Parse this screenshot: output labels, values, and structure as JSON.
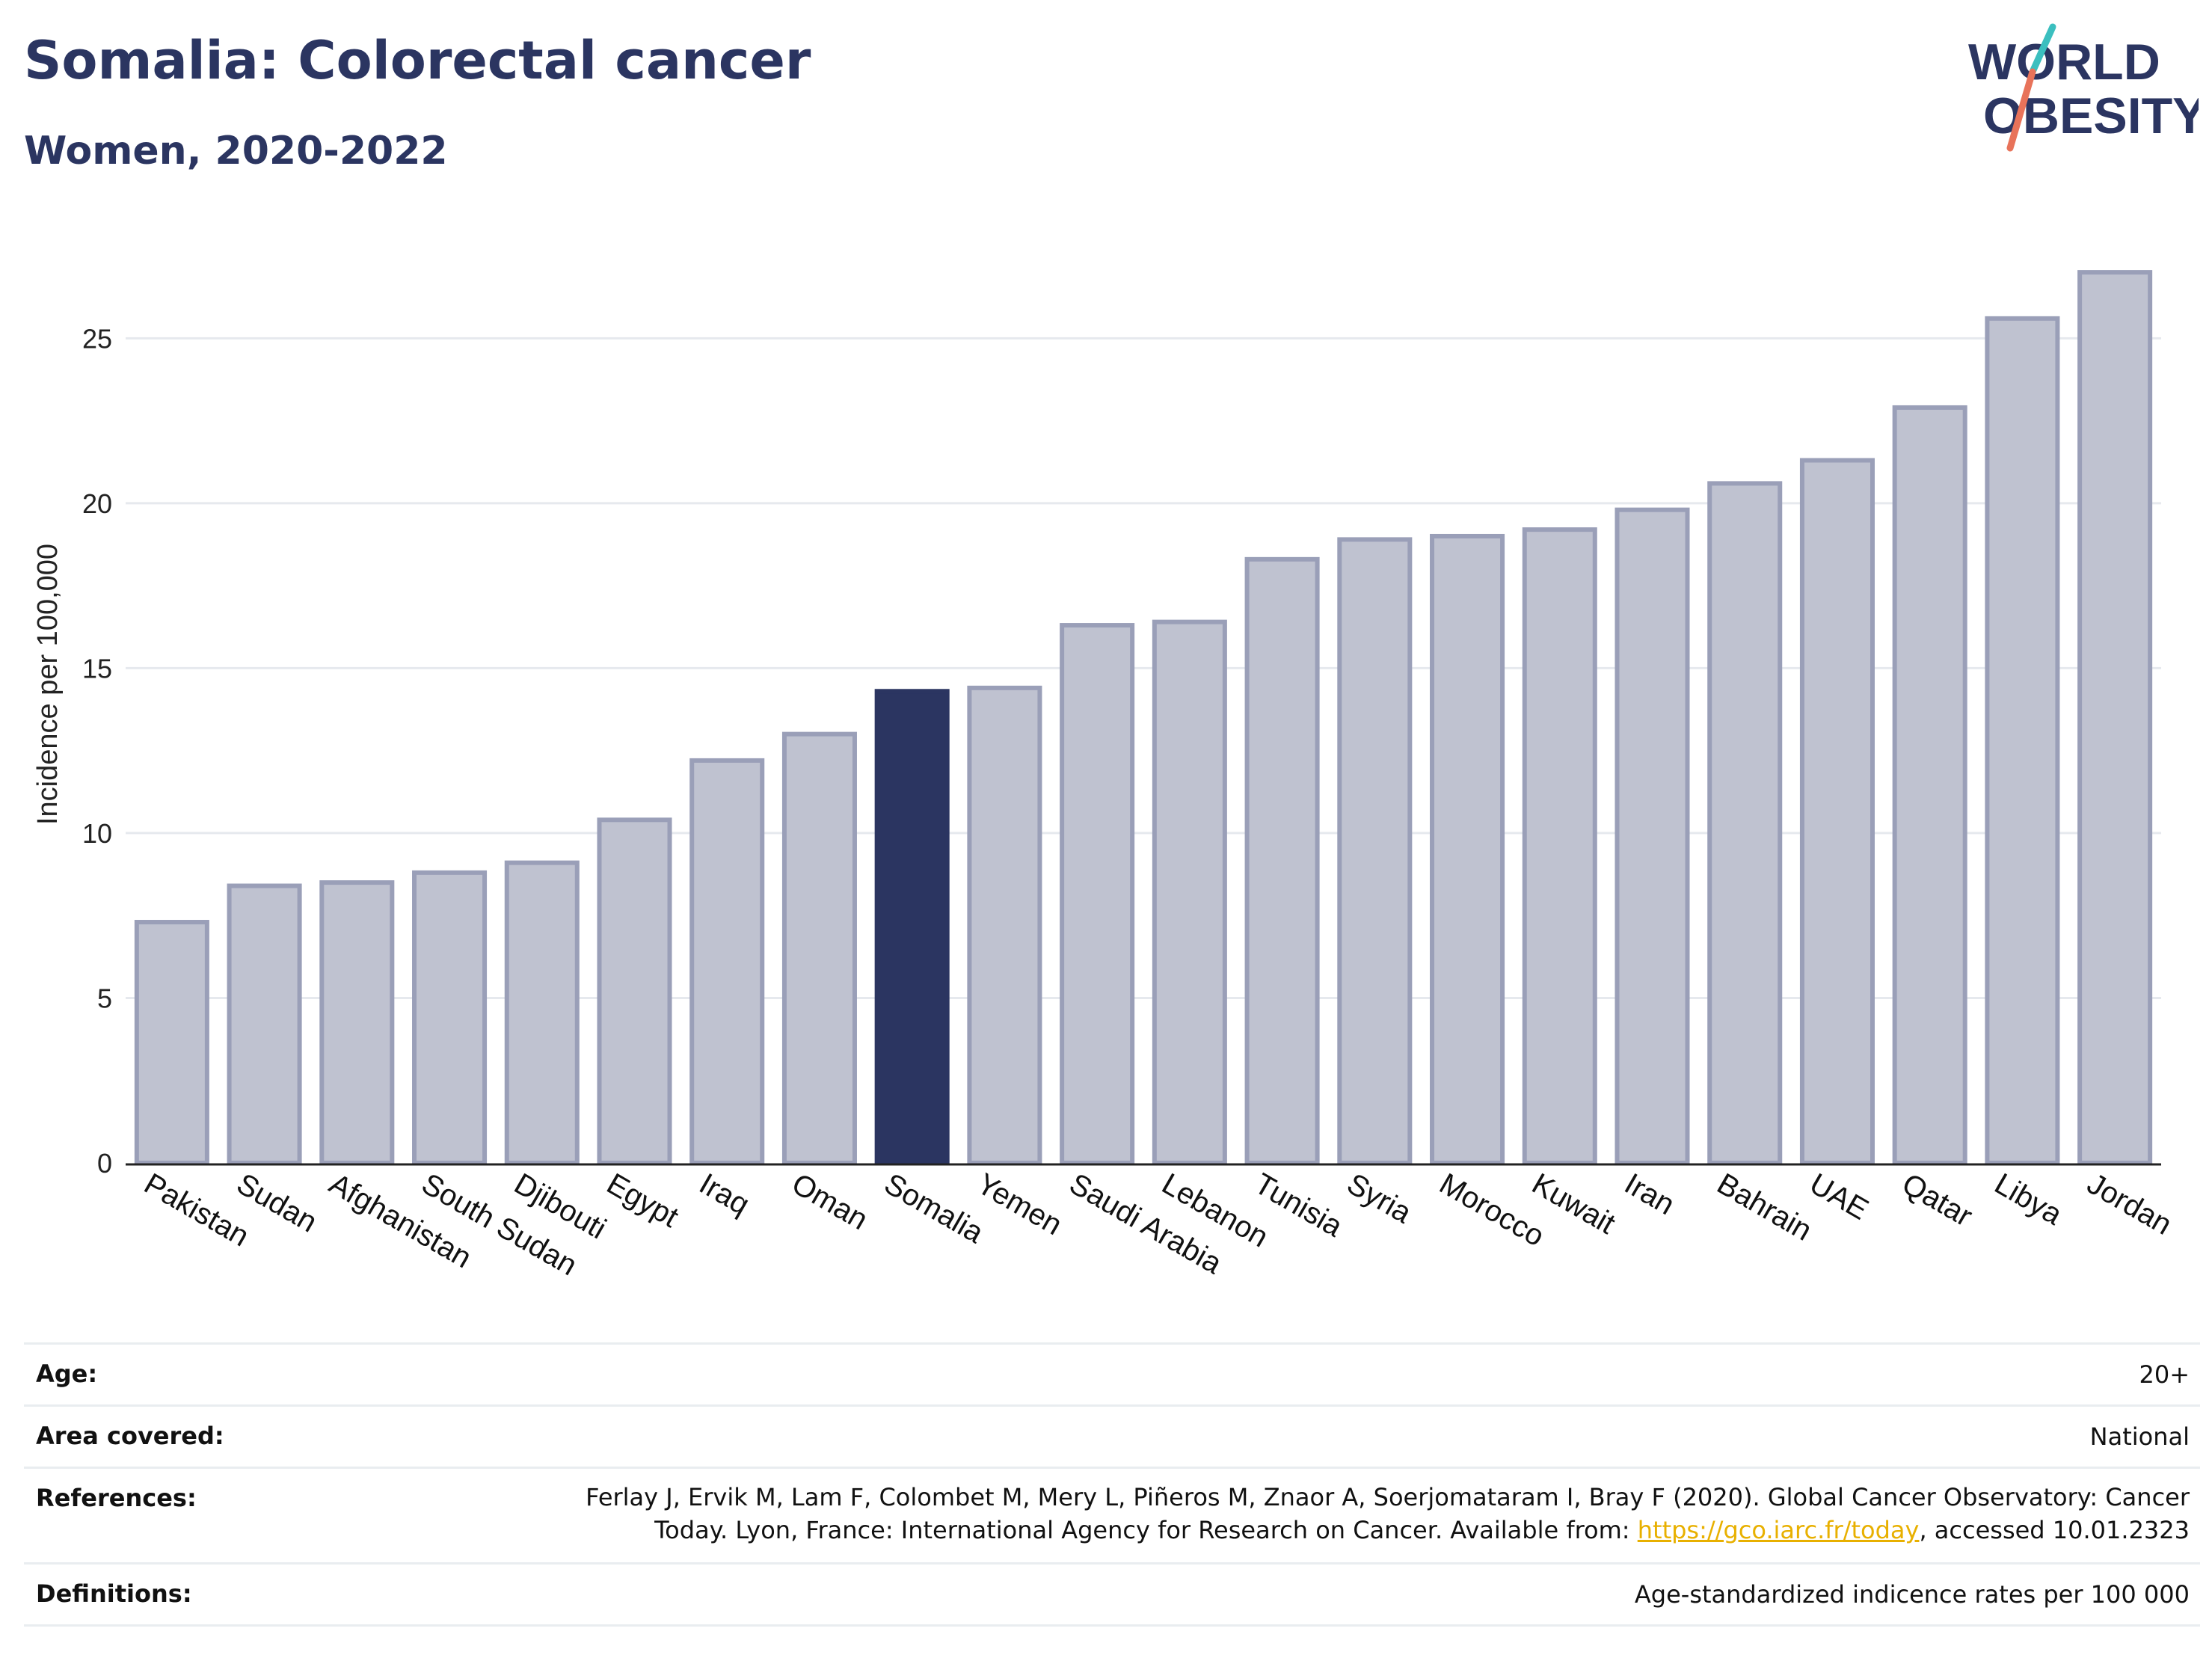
{
  "title": "Somalia: Colorectal cancer",
  "subtitle": "Women, 2020-2022",
  "logo": {
    "line1": "WORLD",
    "line2": "OBESITY"
  },
  "colors": {
    "highlight": "#2b3561",
    "bar_fill": "#bfc2d0",
    "bar_stroke": "#9a9fb8",
    "grid": "#e6e9ee",
    "text": "#2b3561",
    "link": "#e8b000",
    "logo_teal": "#3bbfbf",
    "logo_coral": "#e8735a"
  },
  "chart_data": {
    "type": "bar",
    "ylabel": "Incidence per 100,000",
    "ylim": [
      0,
      28
    ],
    "yticks": [
      0,
      5,
      10,
      15,
      20,
      25
    ],
    "grid": true,
    "highlight": "Somalia",
    "categories": [
      "Pakistan",
      "Sudan",
      "Afghanistan",
      "South Sudan",
      "Djibouti",
      "Egypt",
      "Iraq",
      "Oman",
      "Somalia",
      "Yemen",
      "Saudi Arabia",
      "Lebanon",
      "Tunisia",
      "Syria",
      "Morocco",
      "Kuwait",
      "Iran",
      "Bahrain",
      "UAE",
      "Qatar",
      "Libya",
      "Jordan"
    ],
    "values": [
      7.3,
      8.4,
      8.5,
      8.8,
      9.1,
      10.4,
      12.2,
      13.0,
      14.3,
      14.4,
      16.3,
      16.4,
      18.3,
      18.9,
      19.0,
      19.2,
      19.8,
      20.6,
      21.3,
      22.9,
      25.6,
      27.0
    ]
  },
  "meta": {
    "age_label": "Age:",
    "age_value": "20+",
    "area_label": "Area covered:",
    "area_value": "National",
    "references_label": "References:",
    "references_line1": "Ferlay J, Ervik M, Lam F, Colombet M, Mery L, Piñeros M, Znaor A, Soerjomataram I, Bray F (2020). Global Cancer Observatory: Cancer",
    "references_line2_pre": "Today. Lyon, France: International Agency for Research on Cancer. Available from: ",
    "references_link": "https://gco.iarc.fr/today",
    "references_line2_post": ", accessed 10.01.2323",
    "definitions_label": "Definitions:",
    "definitions_value": "Age-standardized indicence rates per 100 000"
  }
}
